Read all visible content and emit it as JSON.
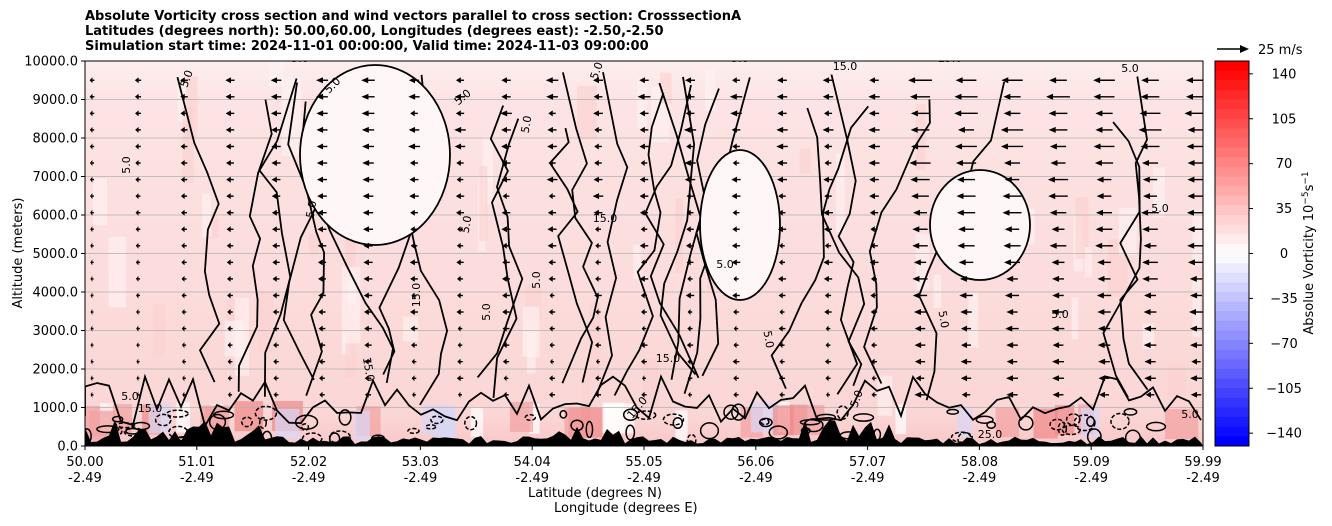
{
  "titles": {
    "line1": "Absolute Vorticity cross section and wind vectors parallel to cross section: CrosssectionA",
    "line2": "Latitudes (degrees north): 50.00,60.00, Longitudes (degrees east): -2.50,-2.50",
    "line3": "Simulation start time: 2024-11-01 00:00:00, Valid time: 2024-11-03 09:00:00"
  },
  "chart_data": {
    "type": "heatmap",
    "ylabel": "Altitude (meters)",
    "xlabel_line1": "Latitude (degrees N)",
    "xlabel_line2": "Longitude (degrees E)",
    "ylim": [
      0,
      10000
    ],
    "y_ticks": [
      "0.0",
      "1000.0",
      "2000.0",
      "3000.0",
      "4000.0",
      "5000.0",
      "6000.0",
      "7000.0",
      "8000.0",
      "9000.0",
      "10000.0"
    ],
    "x_ticks": [
      {
        "lat": "50.00",
        "lon": "-2.49"
      },
      {
        "lat": "51.01",
        "lon": "-2.49"
      },
      {
        "lat": "52.02",
        "lon": "-2.49"
      },
      {
        "lat": "53.03",
        "lon": "-2.49"
      },
      {
        "lat": "54.04",
        "lon": "-2.49"
      },
      {
        "lat": "55.05",
        "lon": "-2.49"
      },
      {
        "lat": "56.06",
        "lon": "-2.49"
      },
      {
        "lat": "57.07",
        "lon": "-2.49"
      },
      {
        "lat": "58.08",
        "lon": "-2.49"
      },
      {
        "lat": "59.09",
        "lon": "-2.49"
      },
      {
        "lat": "59.99",
        "lon": "-2.49"
      }
    ],
    "grid": "horizontal",
    "colorbar": {
      "label": "Absolue Vorticity 10",
      "label_exp": "−5",
      "label_mid": "s",
      "label_exp2": "−1",
      "range": [
        -150,
        150
      ],
      "ticks": [
        "140",
        "105",
        "70",
        "35",
        "0",
        "−35",
        "−70",
        "−105",
        "−140"
      ],
      "tick_values": [
        140,
        105,
        70,
        35,
        0,
        -35,
        -70,
        -105,
        -140
      ],
      "colormap": "bwr"
    },
    "vector_key": {
      "label": "25 m/s",
      "speed": 25
    },
    "contour_levels": [
      5.0,
      15.0,
      25.0
    ],
    "contour_labels": [
      "5.0",
      "15.0",
      "25.0"
    ],
    "wind_direction": "southward (toward decreasing latitude) aloft, calm near surface"
  }
}
